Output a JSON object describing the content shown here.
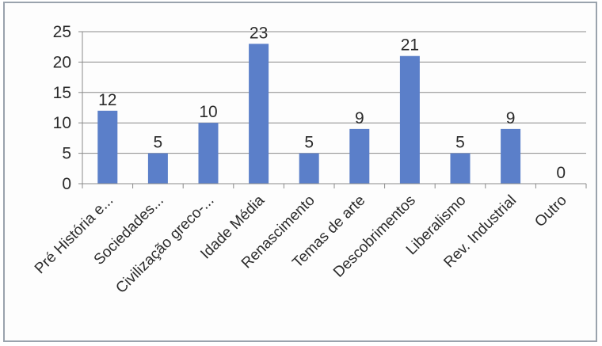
{
  "chart_data": {
    "type": "bar",
    "categories": [
      "Pré História e...",
      "Sociedades...",
      "Civilização greco-...",
      "Idade Média",
      "Renascimento",
      "Temas de arte",
      "Descobrimentos",
      "Liberalismo",
      "Rev. Industrial",
      "Outro"
    ],
    "values": [
      12,
      5,
      10,
      23,
      5,
      9,
      21,
      5,
      9,
      0
    ],
    "data_labels": [
      "12",
      "5",
      "10",
      "23",
      "5",
      "9",
      "21",
      "5",
      "9",
      "0"
    ],
    "y_ticks": [
      "0",
      "5",
      "10",
      "15",
      "20",
      "25"
    ],
    "ylim": [
      0,
      25
    ],
    "grid": true,
    "bar_color": "#5b7fc9",
    "title": "",
    "xlabel": "",
    "ylabel": ""
  }
}
